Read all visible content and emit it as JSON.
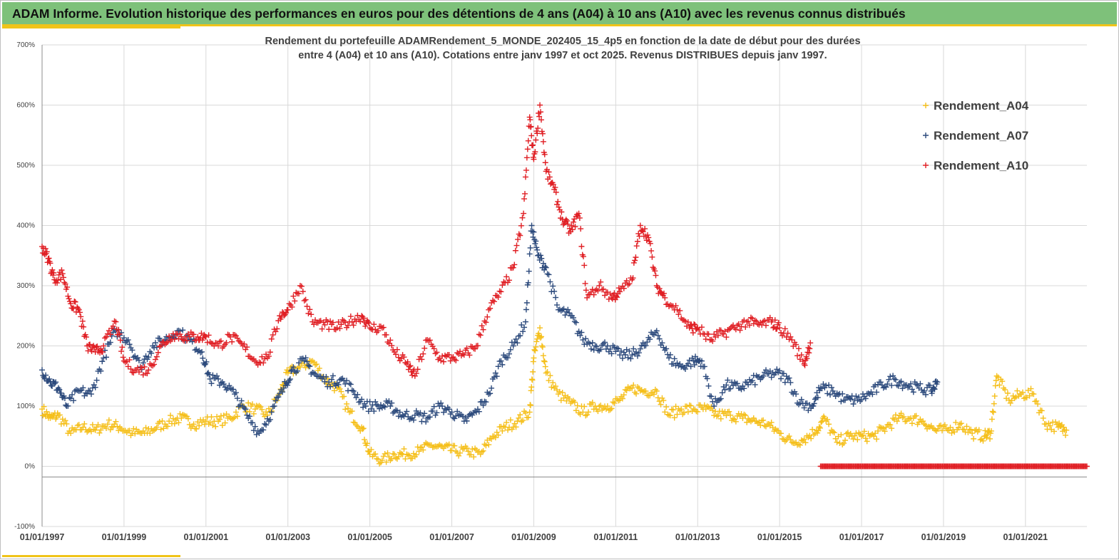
{
  "header": {
    "title": "ADAM Informe. Evolution historique des performances en euros pour des détentions de 4 ans (A04) à 10 ans (A10) avec les revenus connus distribués"
  },
  "colors": {
    "banner": "#7ec17a",
    "accent": "#f0c419",
    "A04": "#f5bf1a",
    "A07": "#2c4a7c",
    "A10": "#e01f24",
    "grid": "#d9d9d9"
  },
  "chart_data": {
    "type": "scatter",
    "title_lines": [
      "Rendement du portefeuille ADAMRendement_5_MONDE_202405_15_4p5  en fonction de la date de début pour des durées",
      "entre 4 (A04) et 10 ans (A10). Cotations  entre janv 1997 et oct 2025. Revenus DISTRIBUES depuis janv 1997."
    ],
    "y_unit": "%",
    "ylim": [
      -100,
      700
    ],
    "yticks": [
      -100,
      0,
      100,
      200,
      300,
      400,
      500,
      600,
      700
    ],
    "ytick_labels": [
      "-100%",
      "0%",
      "100%",
      "200%",
      "300%",
      "400%",
      "500%",
      "600%",
      "700%"
    ],
    "x_unit": "year",
    "xlim": [
      1997.0,
      2022.5
    ],
    "xticks": [
      1997,
      1999,
      2001,
      2003,
      2005,
      2007,
      2009,
      2011,
      2013,
      2015,
      2017,
      2019,
      2021
    ],
    "xtick_labels": [
      "01/01/1997",
      "01/01/1999",
      "01/01/2001",
      "01/01/2003",
      "01/01/2005",
      "01/01/2007",
      "01/01/2009",
      "01/01/2011",
      "01/01/2013",
      "01/01/2015",
      "01/01/2017",
      "01/01/2019",
      "01/01/2021"
    ],
    "grid": true,
    "legend_position": "top-right",
    "marker": "+",
    "series": [
      {
        "name": "Rendement_A04",
        "color": "#f5bf1a",
        "x": [
          1997.0,
          1997.2,
          1997.4,
          1997.7,
          1998.0,
          1998.3,
          1998.6,
          1998.9,
          1999.2,
          1999.5,
          1999.8,
          2000.1,
          2000.4,
          2000.7,
          2001.0,
          2001.3,
          2001.6,
          2001.9,
          2002.2,
          2002.5,
          2002.8,
          2003.0,
          2003.3,
          2003.6,
          2003.9,
          2004.2,
          2004.5,
          2004.8,
          2005.0,
          2005.3,
          2005.6,
          2005.9,
          2006.2,
          2006.5,
          2006.8,
          2007.1,
          2007.4,
          2007.7,
          2008.0,
          2008.3,
          2008.6,
          2008.9,
          2009.0,
          2009.15,
          2009.3,
          2009.6,
          2009.9,
          2010.2,
          2010.5,
          2010.8,
          2011.1,
          2011.4,
          2011.7,
          2012.0,
          2012.3,
          2012.6,
          2012.9,
          2013.2,
          2013.5,
          2013.8,
          2014.1,
          2014.4,
          2014.7,
          2015.0,
          2015.3,
          2015.6,
          2015.9,
          2016.1,
          2016.4,
          2016.7,
          2017.0,
          2017.3,
          2017.6,
          2017.9,
          2018.2,
          2018.5,
          2018.8,
          2019.1,
          2019.4,
          2019.7,
          2020.0,
          2020.15,
          2020.3,
          2020.6,
          2020.9,
          2021.2,
          2021.5,
          2021.8,
          2022.0
        ],
        "y": [
          95,
          80,
          85,
          55,
          65,
          60,
          70,
          65,
          55,
          55,
          65,
          75,
          80,
          70,
          75,
          75,
          80,
          100,
          95,
          85,
          120,
          155,
          165,
          175,
          145,
          130,
          90,
          65,
          20,
          10,
          20,
          20,
          25,
          35,
          30,
          25,
          25,
          20,
          50,
          65,
          75,
          90,
          180,
          230,
          155,
          120,
          105,
          90,
          100,
          100,
          110,
          130,
          125,
          125,
          85,
          95,
          95,
          95,
          85,
          85,
          80,
          75,
          70,
          55,
          40,
          45,
          60,
          80,
          40,
          50,
          50,
          50,
          65,
          80,
          80,
          75,
          60,
          60,
          70,
          55,
          50,
          55,
          150,
          110,
          120,
          120,
          70,
          65,
          60
        ]
      },
      {
        "name": "Rendement_A07",
        "color": "#2c4a7c",
        "x": [
          1997.0,
          1997.2,
          1997.4,
          1997.6,
          1997.9,
          1998.2,
          1998.5,
          1998.8,
          1999.1,
          1999.4,
          1999.7,
          2000.0,
          2000.3,
          2000.6,
          2000.9,
          2001.1,
          2001.4,
          2001.7,
          2002.0,
          2002.3,
          2002.6,
          2002.9,
          2003.1,
          2003.4,
          2003.7,
          2004.0,
          2004.3,
          2004.6,
          2004.9,
          2005.2,
          2005.5,
          2005.8,
          2006.1,
          2006.4,
          2006.7,
          2007.0,
          2007.3,
          2007.6,
          2007.9,
          2008.2,
          2008.5,
          2008.8,
          2008.95,
          2009.1,
          2009.3,
          2009.6,
          2009.9,
          2010.2,
          2010.5,
          2010.8,
          2011.1,
          2011.4,
          2011.7,
          2012.0,
          2012.3,
          2012.6,
          2012.9,
          2013.1,
          2013.4,
          2013.7,
          2014.0,
          2014.3,
          2014.6,
          2014.9,
          2015.2,
          2015.5,
          2015.8,
          2016.0,
          2016.3,
          2016.6,
          2016.9,
          2017.2,
          2017.5,
          2017.8,
          2018.1,
          2018.4,
          2018.7,
          2018.85
        ],
        "y": [
          160,
          140,
          130,
          100,
          125,
          120,
          180,
          225,
          210,
          165,
          200,
          210,
          225,
          210,
          190,
          145,
          140,
          120,
          85,
          55,
          90,
          130,
          160,
          175,
          150,
          140,
          145,
          125,
          100,
          100,
          100,
          85,
          85,
          80,
          100,
          90,
          75,
          90,
          120,
          175,
          200,
          240,
          400,
          350,
          330,
          260,
          250,
          210,
          200,
          200,
          185,
          185,
          200,
          225,
          180,
          165,
          175,
          175,
          100,
          135,
          130,
          140,
          150,
          155,
          145,
          105,
          100,
          130,
          125,
          110,
          110,
          120,
          135,
          145,
          135,
          130,
          125,
          140
        ]
      },
      {
        "name": "Rendement_A10",
        "color": "#e01f24",
        "x": [
          1997.0,
          1997.15,
          1997.3,
          1997.5,
          1997.7,
          1997.9,
          1998.1,
          1998.3,
          1998.5,
          1998.8,
          1999.0,
          1999.3,
          1999.6,
          1999.9,
          2000.2,
          2000.5,
          2000.8,
          2001.0,
          2001.3,
          2001.6,
          2001.9,
          2002.2,
          2002.5,
          2002.8,
          2003.0,
          2003.3,
          2003.6,
          2003.9,
          2004.2,
          2004.5,
          2004.8,
          2005.0,
          2005.3,
          2005.6,
          2005.9,
          2006.1,
          2006.4,
          2006.7,
          2007.0,
          2007.3,
          2007.6,
          2007.9,
          2008.2,
          2008.5,
          2008.75,
          2008.9,
          2009.0,
          2009.15,
          2009.3,
          2009.5,
          2009.7,
          2009.9,
          2010.1,
          2010.3,
          2010.6,
          2010.9,
          2011.1,
          2011.4,
          2011.6,
          2011.8,
          2012.0,
          2012.2,
          2012.5,
          2012.8,
          2013.0,
          2013.3,
          2013.6,
          2013.9,
          2014.2,
          2014.5,
          2014.8,
          2015.0,
          2015.3,
          2015.6,
          2015.75
        ],
        "y": [
          365,
          345,
          310,
          320,
          270,
          260,
          200,
          190,
          200,
          240,
          175,
          160,
          160,
          200,
          220,
          215,
          215,
          215,
          200,
          215,
          200,
          175,
          180,
          250,
          260,
          300,
          240,
          235,
          230,
          240,
          250,
          230,
          230,
          190,
          170,
          150,
          210,
          180,
          180,
          185,
          200,
          260,
          290,
          330,
          420,
          580,
          510,
          600,
          490,
          460,
          410,
          390,
          420,
          280,
          300,
          280,
          290,
          310,
          400,
          380,
          300,
          280,
          260,
          230,
          230,
          210,
          220,
          230,
          240,
          235,
          240,
          230,
          210,
          170,
          205
        ]
      }
    ],
    "zero_segment": {
      "series": "Rendement_A10",
      "x_start": 2016.0,
      "x_end": 2022.5,
      "y": 0
    }
  }
}
